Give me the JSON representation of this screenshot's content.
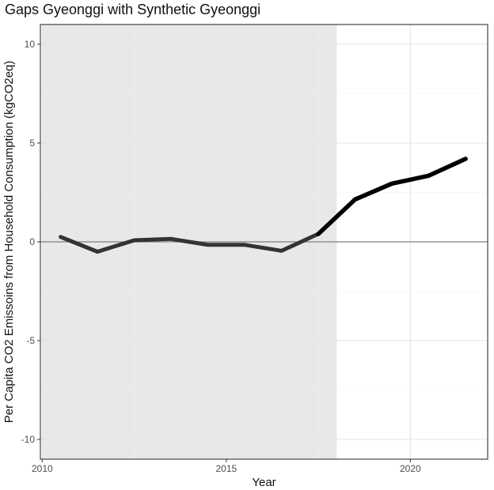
{
  "chart_data": {
    "type": "line",
    "title": "Gaps Gyeonggi with Synthetic Gyeonggi",
    "xlabel": "Year",
    "ylabel": "Per Capita CO2 Emissoins from Household Consumption (kgCO2eq)",
    "xlim": [
      2009.95,
      2022.1
    ],
    "ylim": [
      -11,
      11
    ],
    "x_ticks": [
      2010,
      2015,
      2020
    ],
    "y_ticks": [
      -10,
      -5,
      0,
      5,
      10
    ],
    "x_tick_labels": [
      "2010",
      "2015",
      "2020"
    ],
    "y_tick_labels": [
      "-10",
      "-5",
      "0",
      "5",
      "10"
    ],
    "grid": true,
    "reference_line_y": 0,
    "shaded_period": [
      2010,
      2018
    ],
    "series": [
      {
        "x": [
          2010.5,
          2011.5,
          2012.5,
          2013.5,
          2014.5,
          2015.5,
          2016.5,
          2017.5,
          2018.5,
          2019.5,
          2020.5,
          2021.5
        ],
        "y": [
          0.25,
          -0.5,
          0.08,
          0.15,
          -0.15,
          -0.15,
          -0.45,
          0.4,
          2.15,
          2.95,
          3.35,
          4.2
        ],
        "color_pre": "#333333",
        "color_post": "#000000"
      }
    ],
    "colors": {
      "panel_bg": "#ffffff",
      "shade": "#e8e8e8",
      "grid_major": "#e5e5e5",
      "grid_minor": "#f2f2f2",
      "border": "#333333",
      "zero_line": "#7f7f7f"
    }
  }
}
